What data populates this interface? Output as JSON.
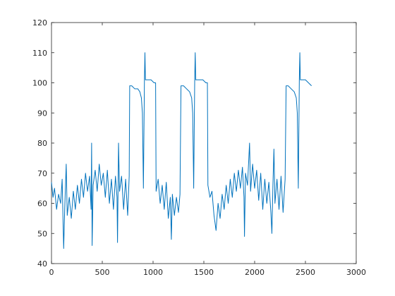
{
  "chart_data": {
    "type": "line",
    "x": [
      0,
      15,
      30,
      50,
      70,
      90,
      105,
      115,
      120,
      130,
      145,
      155,
      175,
      195,
      215,
      235,
      255,
      275,
      295,
      315,
      335,
      355,
      375,
      390,
      395,
      400,
      410,
      430,
      450,
      470,
      490,
      510,
      530,
      550,
      570,
      590,
      610,
      630,
      645,
      650,
      660,
      670,
      690,
      710,
      730,
      750,
      765,
      770,
      790,
      820,
      850,
      870,
      885,
      895,
      905,
      915,
      920,
      925,
      950,
      980,
      1010,
      1025,
      1030,
      1050,
      1070,
      1090,
      1110,
      1130,
      1150,
      1170,
      1180,
      1190,
      1210,
      1230,
      1250,
      1265,
      1275,
      1300,
      1330,
      1360,
      1380,
      1390,
      1400,
      1410,
      1415,
      1420,
      1450,
      1490,
      1520,
      1535,
      1540,
      1560,
      1580,
      1600,
      1620,
      1640,
      1660,
      1680,
      1700,
      1720,
      1740,
      1760,
      1780,
      1800,
      1820,
      1840,
      1860,
      1880,
      1895,
      1900,
      1910,
      1930,
      1950,
      1960,
      1980,
      2000,
      2020,
      2040,
      2060,
      2080,
      2100,
      2120,
      2140,
      2160,
      2170,
      2180,
      2190,
      2200,
      2220,
      2240,
      2260,
      2280,
      2300,
      2310,
      2330,
      2360,
      2390,
      2410,
      2420,
      2430,
      2440,
      2445,
      2450,
      2470,
      2500,
      2530,
      2560
    ],
    "series": [
      {
        "color": "#0072bd",
        "values": [
          67,
          62,
          65,
          58,
          63,
          60,
          68,
          52,
          45,
          58,
          73,
          56,
          62,
          55,
          64,
          58,
          66,
          60,
          68,
          62,
          70,
          64,
          69,
          58,
          80,
          46,
          66,
          71,
          64,
          73,
          66,
          70,
          62,
          71,
          60,
          68,
          58,
          69,
          62,
          47,
          80,
          64,
          69,
          58,
          68,
          56,
          69,
          99,
          99,
          98,
          98,
          97,
          95,
          90,
          65,
          101,
          110,
          101,
          101,
          101,
          100,
          100,
          64,
          68,
          60,
          66,
          58,
          67,
          55,
          62,
          48,
          63,
          56,
          62,
          57,
          63,
          99,
          99,
          98,
          97,
          95,
          90,
          65,
          101,
          110,
          101,
          101,
          101,
          100,
          100,
          66,
          62,
          64,
          56,
          51,
          60,
          55,
          63,
          58,
          66,
          60,
          68,
          62,
          70,
          64,
          71,
          65,
          72,
          62,
          49,
          70,
          66,
          80,
          64,
          73,
          65,
          71,
          61,
          70,
          58,
          68,
          60,
          67,
          57,
          50,
          66,
          78,
          60,
          68,
          58,
          69,
          57,
          68,
          99,
          99,
          98,
          97,
          95,
          90,
          65,
          101,
          110,
          101,
          101,
          101,
          100,
          99
        ]
      }
    ],
    "xlim": [
      0,
      3000
    ],
    "xticks": [
      0,
      500,
      1000,
      1500,
      2000,
      2500,
      3000
    ],
    "ylim": [
      40,
      120
    ],
    "yticks": [
      40,
      50,
      60,
      70,
      80,
      90,
      100,
      110,
      120
    ]
  }
}
